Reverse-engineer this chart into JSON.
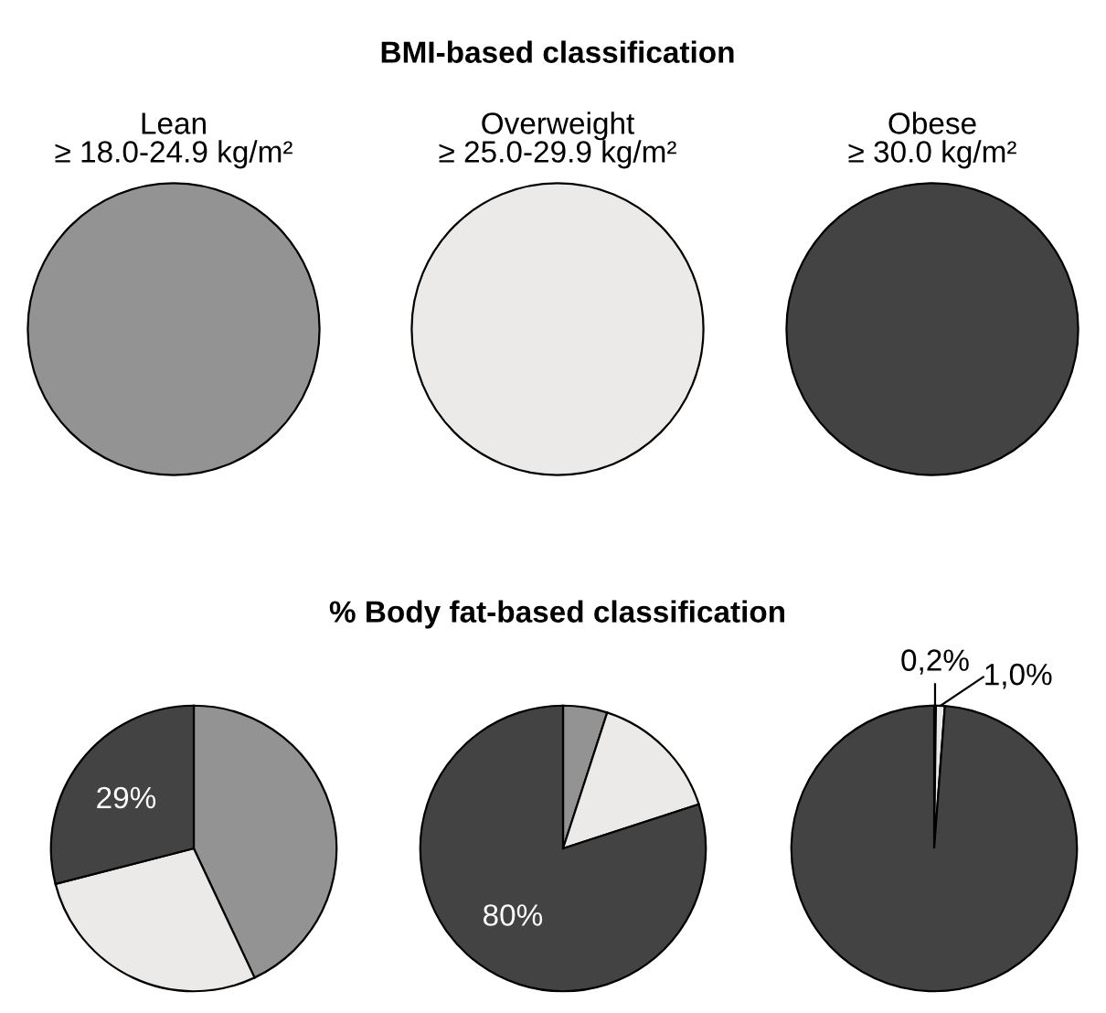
{
  "chart_data": [
    {
      "type": "pie",
      "title": "Lean\n≥ 18.0-24.9 kg/m²",
      "annotations": [
        "BMI-based classification"
      ],
      "categories": [
        null
      ],
      "values": [
        100
      ],
      "colors": [
        "#939393"
      ]
    },
    {
      "type": "pie",
      "title": "Overweight\n≥ 25.0-29.9 kg/m²",
      "categories": [
        null
      ],
      "values": [
        100
      ],
      "colors": [
        "#ebeae8"
      ]
    },
    {
      "type": "pie",
      "title": "Obese\n≥ 30.0 kg/m²",
      "categories": [
        null
      ],
      "values": [
        100
      ],
      "colors": [
        "#434343"
      ]
    },
    {
      "type": "pie",
      "annotations": [
        "% Body fat-based classification"
      ],
      "categories": [
        null,
        null,
        null
      ],
      "values": [
        43,
        28,
        29
      ],
      "colors": [
        "#939393",
        "#ebeae8",
        "#434343"
      ],
      "value_labels": [
        null,
        null,
        "29%"
      ]
    },
    {
      "type": "pie",
      "categories": [
        null,
        null,
        null
      ],
      "values": [
        5,
        15,
        80
      ],
      "colors": [
        "#939393",
        "#ebeae8",
        "#434343"
      ],
      "value_labels": [
        null,
        null,
        "80%"
      ]
    },
    {
      "type": "pie",
      "categories": [
        null,
        null,
        null
      ],
      "values": [
        0.2,
        1.0,
        98.8
      ],
      "colors": [
        "#939393",
        "#ebeae8",
        "#434343"
      ],
      "value_labels": [
        "0,2%",
        "1,0%",
        null
      ]
    }
  ]
}
